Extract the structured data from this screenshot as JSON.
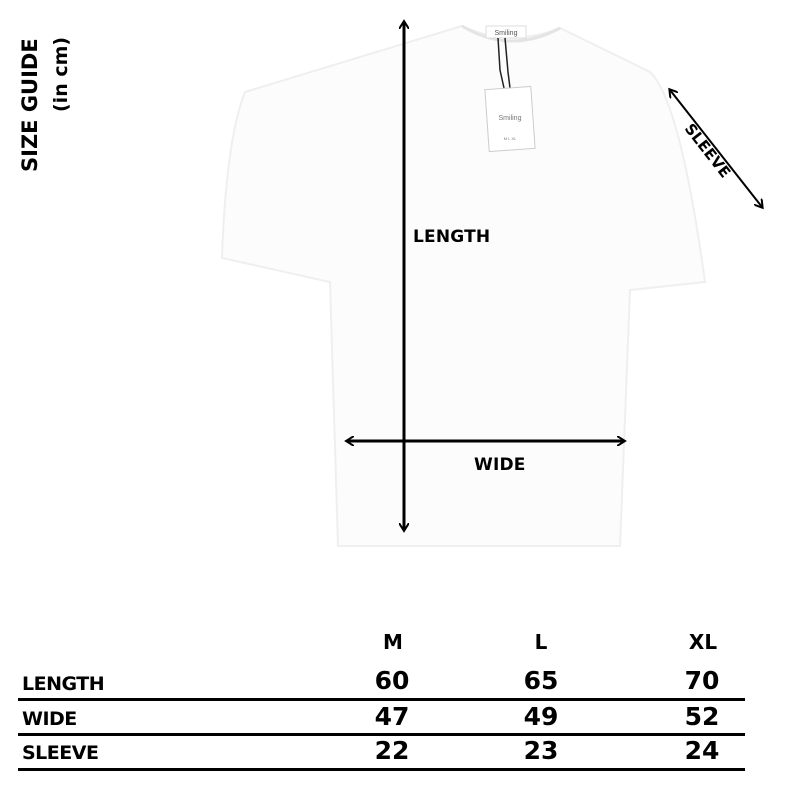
{
  "title": "SIZE GUIDE",
  "unit_note": "(in cm)",
  "diagram": {
    "length_label": "LENGTH",
    "wide_label": "WIDE",
    "sleeve_label": "SLEEVE",
    "brand_logo": "Smiling",
    "tag_sizes": [
      "M",
      "L",
      "XL"
    ]
  },
  "table": {
    "columns": [
      "M",
      "L",
      "XL"
    ],
    "rows": [
      {
        "label": "LENGTH",
        "values": [
          "60",
          "65",
          "70"
        ]
      },
      {
        "label": "WIDE",
        "values": [
          "47",
          "49",
          "52"
        ]
      },
      {
        "label": "SLEEVE",
        "values": [
          "22",
          "23",
          "24"
        ]
      }
    ]
  }
}
